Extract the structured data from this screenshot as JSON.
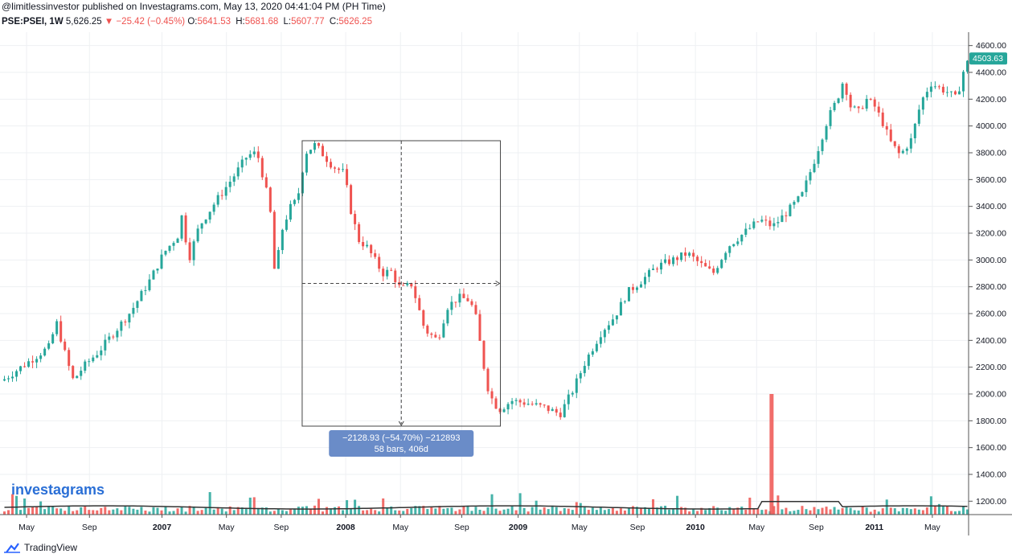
{
  "header": {
    "published": "@limitlessinvestor published on Investagrams.com, May 13, 2020 04:41:04 PM (PH Time)",
    "symbol": "PSE:PSEI, 1W",
    "last": "5,626.25",
    "change_arrow": "▼",
    "change": "−25.42 (−0.45%)",
    "o_label": "O:",
    "o_value": "5641.53",
    "h_label": "H:",
    "h_value": "5681.68",
    "l_label": "L:",
    "l_value": "5607.77",
    "c_label": "C:",
    "c_value": "5626.25"
  },
  "watermark": "investagrams",
  "footer": {
    "brand": "TradingView"
  },
  "colors": {
    "up": "#26a69a",
    "down": "#ef5350",
    "grid": "#eef0f3",
    "measure_box": "#6a8cc8"
  },
  "chart_data": {
    "type": "candlestick",
    "ylim": [
      1100,
      4700
    ],
    "y_ticks": [
      "4600.00",
      "4400.00",
      "4200.00",
      "4000.00",
      "3800.00",
      "3600.00",
      "3400.00",
      "3200.00",
      "3000.00",
      "2800.00",
      "2600.00",
      "2400.00",
      "2200.00",
      "2000.00",
      "1800.00",
      "1600.00",
      "1400.00",
      "1200.00"
    ],
    "last_price_label": "4503.63",
    "last_price": 4503.63,
    "x_ticks": [
      "May",
      "Sep",
      "2007",
      "May",
      "Sep",
      "2008",
      "May",
      "Sep",
      "2009",
      "May",
      "Sep",
      "2010",
      "May",
      "Sep",
      "2011",
      "May"
    ],
    "x_tick_bold": [
      false,
      false,
      true,
      false,
      false,
      true,
      false,
      false,
      true,
      false,
      false,
      true,
      false,
      false,
      true,
      false
    ],
    "price_path": [
      [
        0,
        2100
      ],
      [
        15,
        2230
      ],
      [
        30,
        2360
      ],
      [
        33,
        2560
      ],
      [
        40,
        2250
      ],
      [
        44,
        2100
      ],
      [
        50,
        2200
      ],
      [
        60,
        2320
      ],
      [
        70,
        2470
      ],
      [
        80,
        2620
      ],
      [
        92,
        2860
      ],
      [
        100,
        3050
      ],
      [
        110,
        3200
      ],
      [
        112,
        3400
      ],
      [
        115,
        2980
      ],
      [
        122,
        3250
      ],
      [
        132,
        3430
      ],
      [
        145,
        3650
      ],
      [
        152,
        3780
      ],
      [
        158,
        3800
      ],
      [
        163,
        3560
      ],
      [
        167,
        3300
      ],
      [
        169,
        2880
      ],
      [
        174,
        3250
      ],
      [
        179,
        3400
      ],
      [
        183,
        3450
      ],
      [
        188,
        3800
      ],
      [
        194,
        3860
      ],
      [
        205,
        3700
      ],
      [
        212,
        3650
      ],
      [
        216,
        3380
      ],
      [
        221,
        3150
      ],
      [
        226,
        3100
      ],
      [
        231,
        3000
      ],
      [
        236,
        2900
      ],
      [
        241,
        2920
      ],
      [
        247,
        2780
      ],
      [
        254,
        2820
      ],
      [
        262,
        2480
      ],
      [
        270,
        2400
      ],
      [
        276,
        2650
      ],
      [
        283,
        2720
      ],
      [
        290,
        2700
      ],
      [
        294,
        2560
      ],
      [
        298,
        2250
      ],
      [
        302,
        2000
      ],
      [
        308,
        1880
      ],
      [
        316,
        1950
      ],
      [
        326,
        1930
      ],
      [
        336,
        1900
      ],
      [
        346,
        1850
      ],
      [
        354,
        2030
      ],
      [
        362,
        2250
      ],
      [
        372,
        2470
      ],
      [
        380,
        2580
      ],
      [
        388,
        2760
      ],
      [
        396,
        2840
      ],
      [
        406,
        2950
      ],
      [
        416,
        3000
      ],
      [
        425,
        3050
      ],
      [
        434,
        2960
      ],
      [
        441,
        2900
      ],
      [
        450,
        3100
      ],
      [
        460,
        3200
      ],
      [
        470,
        3300
      ],
      [
        478,
        3250
      ],
      [
        487,
        3360
      ],
      [
        496,
        3480
      ],
      [
        504,
        3750
      ],
      [
        512,
        4050
      ],
      [
        518,
        4200
      ],
      [
        522,
        4350
      ],
      [
        526,
        4150
      ],
      [
        531,
        4100
      ],
      [
        536,
        4200
      ],
      [
        541,
        4150
      ],
      [
        546,
        4030
      ],
      [
        551,
        3880
      ],
      [
        557,
        3780
      ],
      [
        564,
        3900
      ],
      [
        570,
        4180
      ],
      [
        576,
        4320
      ],
      [
        582,
        4280
      ],
      [
        587,
        4250
      ],
      [
        592,
        4200
      ],
      [
        596,
        4400
      ],
      [
        600,
        4503.63
      ]
    ],
    "volume_spike": {
      "week": 477,
      "value": 2000
    },
    "measure": {
      "label_line1": "−2128.93 (−54.70%) −212893",
      "label_line2": "58 bars, 406d",
      "start_week": 186,
      "end_week": 309,
      "start_price": 3890,
      "end_price": 1760
    },
    "grid": true
  }
}
